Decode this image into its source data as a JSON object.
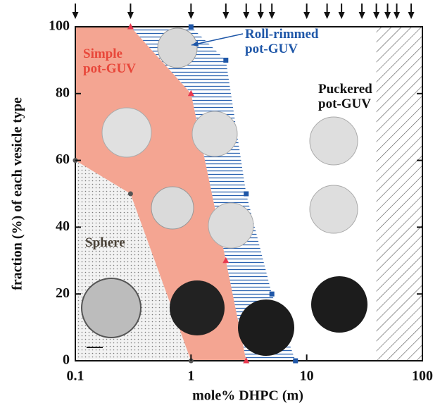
{
  "chart_data": {
    "type": "phase",
    "xlabel": "mole% DHPC (m)",
    "ylabel": "fraction (%) of each vesicle type",
    "xscale": "log",
    "xlim": [
      0.1,
      100
    ],
    "ylim": [
      0,
      100
    ],
    "xticks": [
      0.1,
      1,
      10,
      100
    ],
    "yticks": [
      0,
      20,
      40,
      60,
      80,
      100
    ],
    "arrows": [
      0.1,
      0.3,
      1,
      2,
      3,
      4,
      5,
      10,
      15,
      20,
      30,
      40,
      50,
      60,
      80
    ],
    "hatched_region": [
      40,
      100
    ],
    "boundaries": [
      {
        "x": [
          0.1,
          0.3,
          1
        ],
        "values": [
          60,
          50,
          0
        ],
        "color": "#555555",
        "marker": "circle",
        "fill": "sphere"
      },
      {
        "x": [
          0.3,
          1,
          2,
          3
        ],
        "values": [
          100,
          80,
          30,
          0
        ],
        "color": "#e8394f",
        "marker": "triangle",
        "fill": "simple"
      },
      {
        "x": [
          1,
          2,
          3,
          5,
          8
        ],
        "values": [
          100,
          90,
          50,
          20,
          0
        ],
        "color": "#1f57a8",
        "marker": "square",
        "fill": "roll"
      }
    ],
    "annotations": [
      {
        "lines": [
          "Simple",
          "pot-GUV"
        ],
        "color": "#e8473a"
      },
      {
        "lines": [
          "Roll-rimmed",
          "pot-GUV"
        ],
        "color": "#1f57a8"
      },
      {
        "lines": [
          "Puckered",
          "pot-GUV"
        ],
        "color": "#111111"
      },
      {
        "lines": [
          "Sphere"
        ],
        "color": "#4a4238"
      }
    ]
  }
}
